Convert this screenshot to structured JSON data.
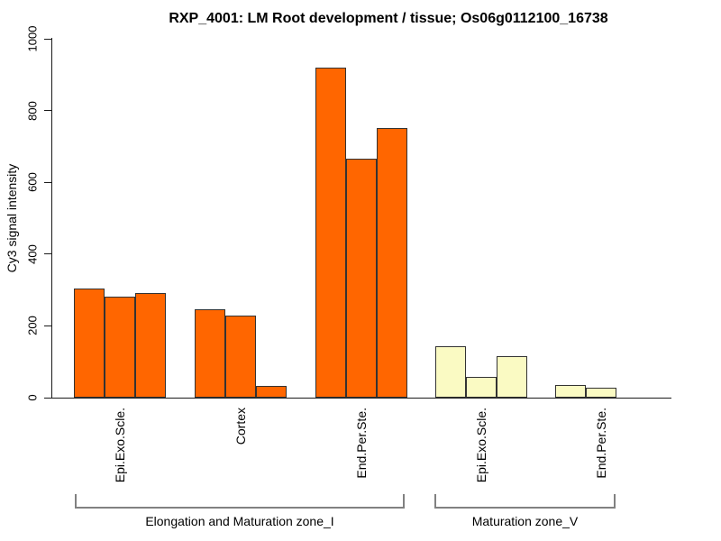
{
  "chart_data": {
    "type": "bar",
    "title": "RXP_4001: LM Root development / tissue; Os06g0112100_16738",
    "ylabel": "Cy3 signal intensity",
    "xlabel": "",
    "ylim": [
      0,
      1000
    ],
    "yticks": [
      0,
      200,
      400,
      600,
      800,
      1000
    ],
    "grid": false,
    "legend_position": "none",
    "bar_border_color": "#333333",
    "groups": [
      {
        "label": "Epi.Exo.Scle.",
        "zone": "Elongation and Maturation zone_I",
        "color": "#FF6600",
        "values": [
          305,
          282,
          292
        ]
      },
      {
        "label": "Cortex",
        "zone": "Elongation and Maturation zone_I",
        "color": "#FF6600",
        "values": [
          245,
          228,
          32
        ]
      },
      {
        "label": "End.Per.Ste.",
        "zone": "Elongation and Maturation zone_I",
        "color": "#FF6600",
        "values": [
          920,
          665,
          752
        ]
      },
      {
        "label": "Epi.Exo.Scle.",
        "zone": "Maturation zone_V",
        "color": "#FAFAC3",
        "values": [
          143,
          57,
          116
        ]
      },
      {
        "label": "End.Per.Ste.",
        "zone": "Maturation zone_V",
        "color": "#FAFAC3",
        "values": [
          34,
          27
        ]
      }
    ],
    "zones": [
      {
        "label": "Elongation and Maturation zone_I"
      },
      {
        "label": "Maturation zone_V"
      }
    ]
  }
}
